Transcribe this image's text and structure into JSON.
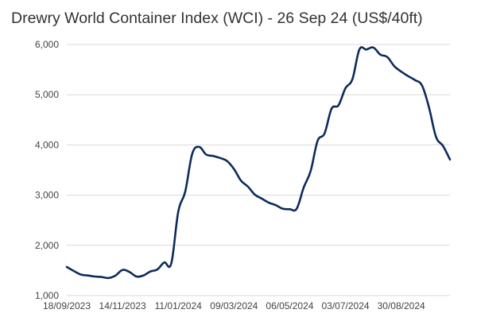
{
  "chart_data": {
    "type": "line",
    "title": "Drewry World Container Index (WCI) - 26 Sep 24 (US$/40ft)",
    "xlabel": "",
    "ylabel": "",
    "ylim": [
      1000,
      6000
    ],
    "yticks": [
      1000,
      2000,
      3000,
      4000,
      5000,
      6000
    ],
    "ytick_labels": [
      "1,000",
      "2,000",
      "3,000",
      "4,000",
      "5,000",
      "6,000"
    ],
    "xtick_labels": [
      "18/09/2023",
      "14/11/2023",
      "11/01/2024",
      "09/03/2024",
      "06/05/2024",
      "03/07/2024",
      "30/08/2024"
    ],
    "xtick_indices": [
      0,
      8,
      16,
      24,
      32,
      40,
      48
    ],
    "grid": "horizontal",
    "legend": "none",
    "line_color": "#0d2c5a",
    "series": [
      {
        "values": [
          1570,
          1490,
          1420,
          1400,
          1380,
          1370,
          1350,
          1400,
          1510,
          1470,
          1380,
          1400,
          1480,
          1520,
          1660,
          1640,
          2670,
          3070,
          3820,
          3960,
          3810,
          3780,
          3740,
          3680,
          3520,
          3290,
          3170,
          3010,
          2930,
          2850,
          2800,
          2730,
          2720,
          2730,
          3150,
          3480,
          4080,
          4230,
          4720,
          4790,
          5130,
          5310,
          5900,
          5900,
          5940,
          5800,
          5750,
          5570,
          5460,
          5370,
          5290,
          5180,
          4740,
          4160,
          3980,
          3710
        ]
      }
    ]
  }
}
